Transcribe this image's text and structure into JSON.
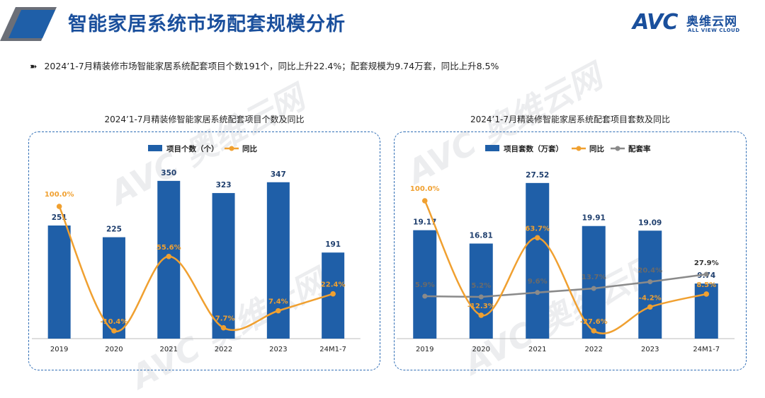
{
  "header": {
    "title": "智能家居系统市场配套规模分析",
    "logo_avc": "AVC",
    "logo_cn": "奥维云网",
    "logo_en": "ALL VIEW CLOUD"
  },
  "summary": {
    "arrow": "➽",
    "text": "2024’1-7月精装修市场智能家居系统配套项目个数191个，同比上升22.4%；配套规模为9.74万套，同比上升8.5%"
  },
  "watermark": {
    "brand": "AVC 奥维云网",
    "en": "ALL VIEW CLOUD"
  },
  "colors": {
    "bar": "#1f5fa8",
    "yoy": "#f0a030",
    "rate": "#8a8a8a",
    "title": "#1a4f9c"
  },
  "chart_data": [
    {
      "type": "bar",
      "title": "2024’1-7月精装修智能家居系统配套项目个数及同比",
      "categories": [
        "2019",
        "2020",
        "2021",
        "2022",
        "2023",
        "24M1-7"
      ],
      "series": [
        {
          "name": "项目个数（个）",
          "type": "bar",
          "values": [
            251,
            225,
            350,
            323,
            347,
            191
          ],
          "labels": [
            "251",
            "225",
            "350",
            "323",
            "347",
            "191"
          ]
        },
        {
          "name": "同比",
          "type": "line",
          "smooth": true,
          "values": [
            100.0,
            -10.4,
            55.6,
            -7.7,
            7.4,
            22.4
          ],
          "labels": [
            "100.0%",
            "-10.4%",
            "55.6%",
            "-7.7%",
            "7.4%",
            "22.4%"
          ]
        }
      ],
      "legend": "top-left",
      "grid": false
    },
    {
      "type": "bar",
      "title": "2024’1-7月精装修智能家居系统配套项目套数及同比",
      "categories": [
        "2019",
        "2020",
        "2021",
        "2022",
        "2023",
        "24M1-7"
      ],
      "series": [
        {
          "name": "项目套数（万套）",
          "type": "bar",
          "values": [
            19.17,
            16.81,
            27.52,
            19.91,
            19.09,
            9.74
          ],
          "labels": [
            "19.17",
            "16.81",
            "27.52",
            "19.91",
            "19.09",
            "9.74"
          ]
        },
        {
          "name": "同比",
          "type": "line",
          "smooth": true,
          "values": [
            100.0,
            -12.3,
            63.7,
            -27.6,
            -4.2,
            8.5
          ],
          "labels": [
            "100.0%",
            "-12.3%",
            "63.7%",
            "-27.6%",
            "-4.2%",
            "8.5%"
          ]
        },
        {
          "name": "配套率",
          "type": "line",
          "smooth": false,
          "values": [
            5.9,
            5.2,
            9.6,
            13.7,
            20.4,
            27.9
          ],
          "labels": [
            "5.9%",
            "5.2%",
            "9.6%",
            "13.7%",
            "20.4%",
            "27.9%"
          ]
        }
      ],
      "legend": "top-left",
      "grid": false
    }
  ]
}
